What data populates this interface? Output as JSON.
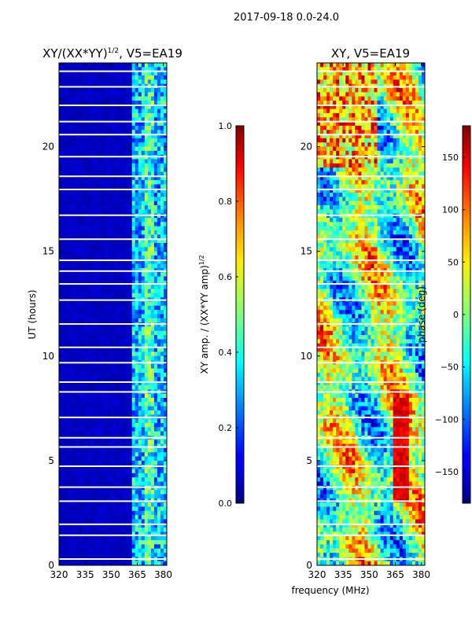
{
  "suptitle": "2017-09-18 0.0-24.0",
  "xlabel_shared": "frequency (MHz)",
  "chart_data": [
    {
      "type": "heatmap",
      "title": "XY/(XX*YY)",
      "title_sup": "1/2",
      "title_tail": ", V5=EA19",
      "ylabel": "UT (hours)",
      "xlim": [
        320,
        382
      ],
      "ylim": [
        0,
        24
      ],
      "xticks": [
        320,
        335,
        350,
        365,
        380
      ],
      "yticks": [
        0,
        5,
        10,
        15,
        20
      ],
      "colorbar": {
        "label": "XY amp. / (XX*YY amp)",
        "label_sup": "1/2",
        "range": [
          0.0,
          1.0
        ],
        "ticks": [
          "0.0",
          "0.2",
          "0.4",
          "0.6",
          "0.8",
          "1.0"
        ],
        "tick_values": [
          0.0,
          0.2,
          0.4,
          0.6,
          0.8,
          1.0
        ],
        "colormap": "jet"
      }
    },
    {
      "type": "heatmap",
      "title": "XY, V5=EA19",
      "xlim": [
        320,
        382
      ],
      "ylim": [
        0,
        24
      ],
      "xticks": [
        320,
        335,
        350,
        365,
        380
      ],
      "yticks": [
        0,
        5,
        10,
        15,
        20
      ],
      "colorbar": {
        "label": "phase (deg)",
        "range": [
          -180,
          180
        ],
        "ticks": [
          "−150",
          "−100",
          "−50",
          "0",
          "50",
          "100",
          "150"
        ],
        "tick_values": [
          -150,
          -100,
          -50,
          0,
          50,
          100,
          150
        ],
        "colormap": "jet"
      }
    }
  ]
}
